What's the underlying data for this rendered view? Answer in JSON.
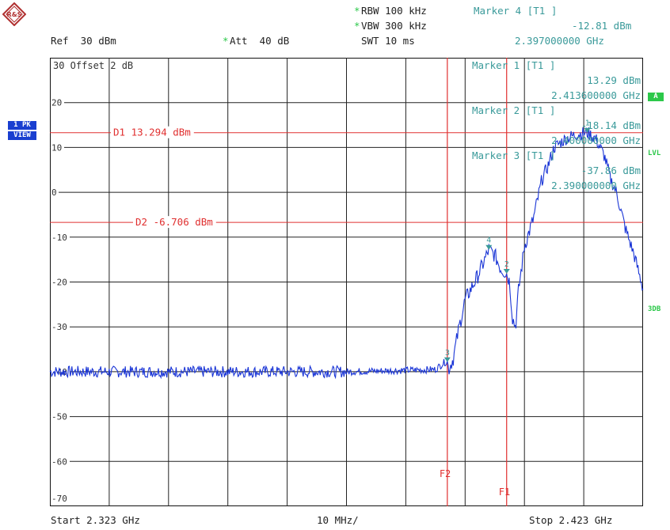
{
  "header": {
    "rbw": "RBW 100 kHz",
    "vbw": "VBW 300 kHz",
    "swt": "SWT 10 ms",
    "ref": "Ref  30 dBm",
    "att": "Att  40 dB",
    "rbw_star": "*",
    "vbw_star": "*",
    "att_star": "*"
  },
  "marker_top": {
    "title": "Marker 4 [T1 ]",
    "level": "-12.81 dBm",
    "freq": "2.397000000 GHz"
  },
  "markers_in_plot": [
    {
      "title": "Marker 1 [T1 ]",
      "level": "13.29 dBm",
      "freq": "2.413600000 GHz"
    },
    {
      "title": "Marker 2 [T1 ]",
      "level": "-18.14 dBm",
      "freq": "2.400000000 GHz"
    },
    {
      "title": "Marker 3 [T1 ]",
      "level": "-37.86 dBm",
      "freq": "2.390000000 GHz"
    }
  ],
  "offset": "30  Offset  2 dB",
  "display_lines": [
    {
      "label": "D1 13.294 dBm",
      "value_dbm": 13.294
    },
    {
      "label": "D2 -6.706 dBm",
      "value_dbm": -6.706
    }
  ],
  "freq_lines": [
    {
      "label": "F2",
      "ghz": 2.39
    },
    {
      "label": "F1",
      "ghz": 2.4
    }
  ],
  "y_ticks": [
    "30",
    "20",
    "10",
    "0",
    "-10",
    "-20",
    "-30",
    "-40",
    "-50",
    "-60",
    "-70"
  ],
  "footer": {
    "start": "Start 2.323 GHz",
    "div": "10 MHz/",
    "stop": "Stop 2.423 GHz"
  },
  "side_badges": {
    "pk": "1 PK",
    "view": "VIEW",
    "a": "A",
    "lvl": "LVL",
    "db3": "3DB"
  },
  "logo_text": "R&S",
  "colors": {
    "trace": "#1a35d6",
    "red_line": "#e03030",
    "teal": "#3a9a9a",
    "green": "#2cc84a",
    "blue_badge": "#1a3fd0"
  }
}
